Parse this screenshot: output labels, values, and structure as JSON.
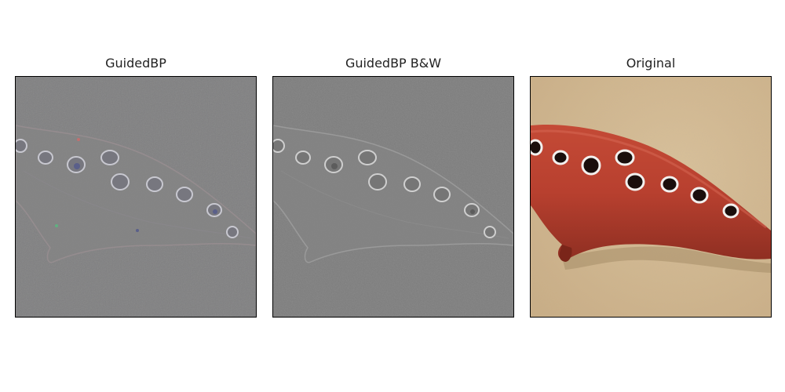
{
  "figure": {
    "panels": [
      {
        "title": "GuidedBP",
        "image": "guided-backprop-color-saliency"
      },
      {
        "title": "GuidedBP B&W",
        "image": "guided-backprop-grayscale-saliency"
      },
      {
        "title": "Original",
        "image": "red-ocarina-photo"
      }
    ]
  }
}
